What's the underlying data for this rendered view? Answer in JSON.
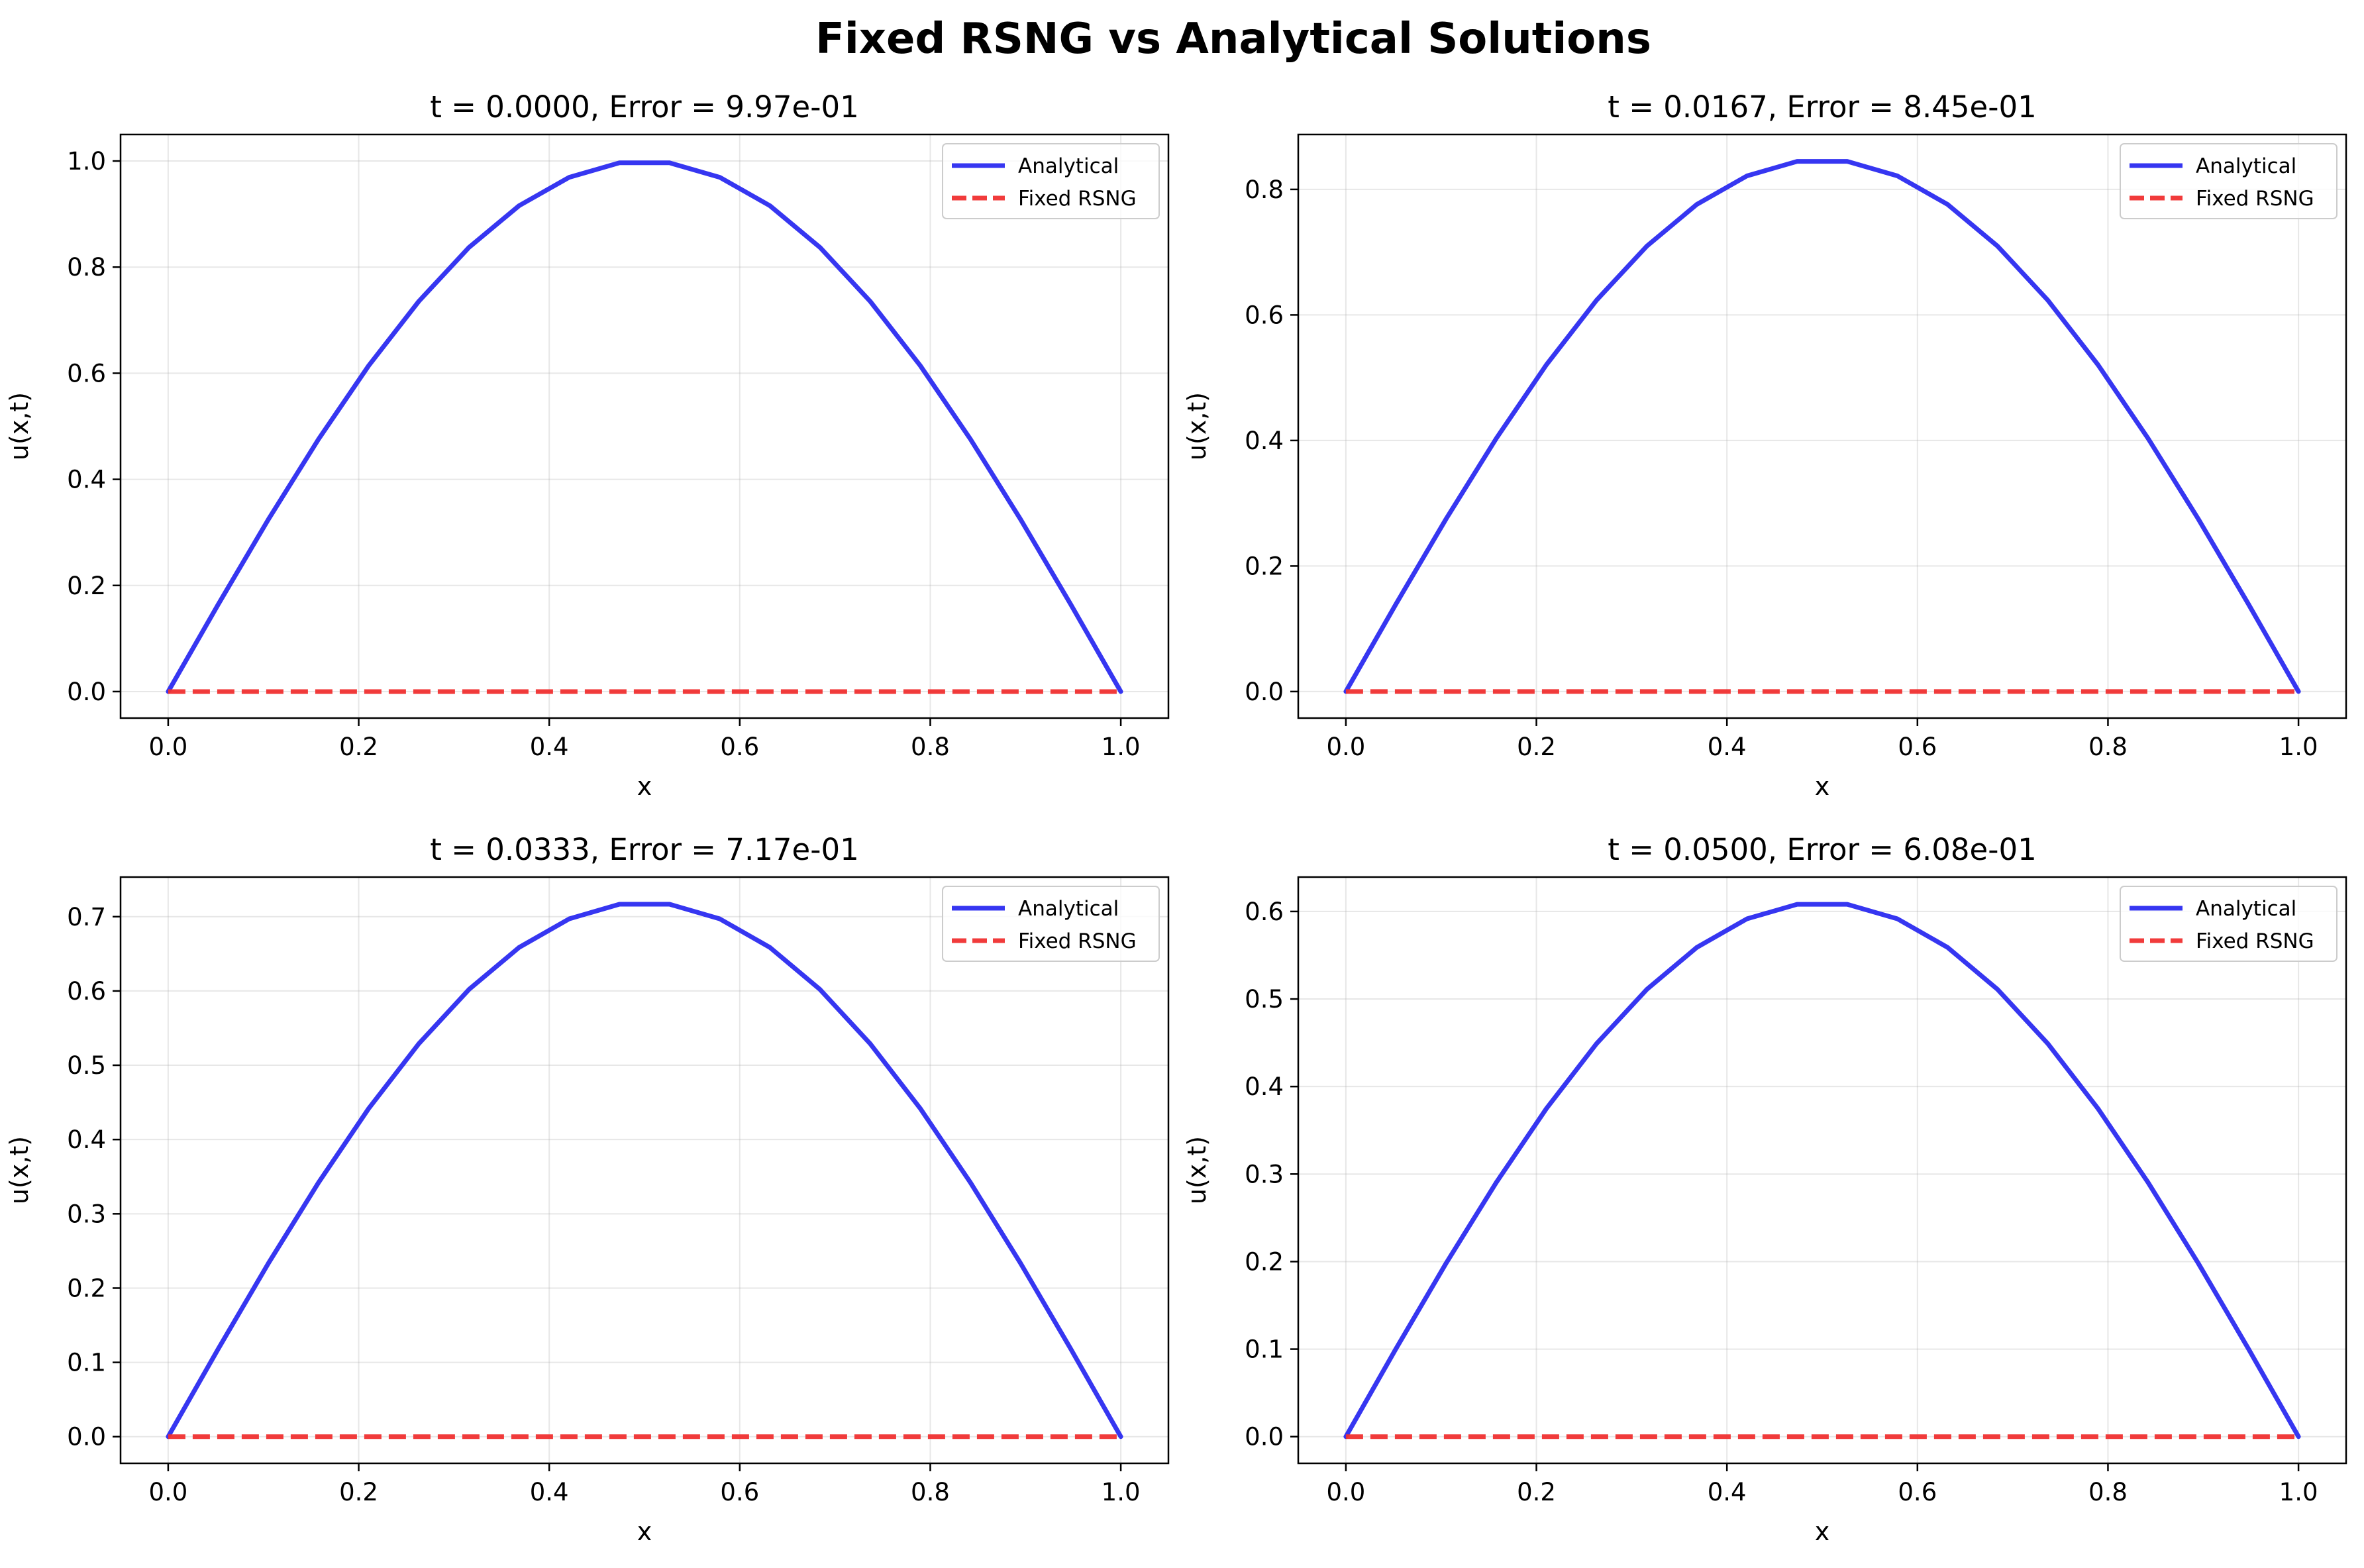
{
  "figure": {
    "title": "Fixed RSNG vs Analytical Solutions"
  },
  "colors": {
    "analytical": "#2b2bf0",
    "fixed_rsng": "#f03030"
  },
  "chart_data": [
    {
      "type": "line",
      "title": "t = 0.0000, Error = 9.97e-01",
      "xlabel": "x",
      "ylabel": "u(x,t)",
      "xlim": [
        -0.05,
        1.05
      ],
      "ylim": [
        -0.05,
        1.05
      ],
      "xticks": [
        0.0,
        0.2,
        0.4,
        0.6,
        0.8,
        1.0
      ],
      "xtick_labels": [
        "0.0",
        "0.2",
        "0.4",
        "0.6",
        "0.8",
        "1.0"
      ],
      "yticks": [
        0.0,
        0.2,
        0.4,
        0.6,
        0.8,
        1.0
      ],
      "ytick_labels": [
        "0.0",
        "0.2",
        "0.4",
        "0.6",
        "0.8",
        "1.0"
      ],
      "grid": true,
      "legend": "top-right",
      "x": [
        0,
        0.0526,
        0.1053,
        0.1579,
        0.2105,
        0.2632,
        0.3158,
        0.3684,
        0.4211,
        0.4737,
        0.5263,
        0.5789,
        0.6316,
        0.6842,
        0.7368,
        0.7895,
        0.8421,
        0.8947,
        0.9474,
        1.0
      ],
      "series": [
        {
          "name": "Analytical",
          "style": "solid",
          "values": [
            0,
            0.1646,
            0.3247,
            0.4759,
            0.6142,
            0.7357,
            0.8372,
            0.9158,
            0.9694,
            0.9966,
            0.9966,
            0.9694,
            0.9158,
            0.8372,
            0.7357,
            0.6142,
            0.4759,
            0.3247,
            0.1646,
            0
          ]
        },
        {
          "name": "Fixed RSNG",
          "style": "dashed",
          "values": [
            0,
            0,
            0,
            0,
            0,
            0,
            0,
            0,
            0,
            0,
            0,
            0,
            0,
            0,
            0,
            0,
            0,
            0,
            0,
            0
          ]
        }
      ]
    },
    {
      "type": "line",
      "title": "t = 0.0167, Error = 8.45e-01",
      "xlabel": "x",
      "ylabel": "u(x,t)",
      "xlim": [
        -0.05,
        1.05
      ],
      "ylim": [
        -0.0423,
        0.8875
      ],
      "xticks": [
        0.0,
        0.2,
        0.4,
        0.6,
        0.8,
        1.0
      ],
      "xtick_labels": [
        "0.0",
        "0.2",
        "0.4",
        "0.6",
        "0.8",
        "1.0"
      ],
      "yticks": [
        0.0,
        0.2,
        0.4,
        0.6,
        0.8
      ],
      "ytick_labels": [
        "0.0",
        "0.2",
        "0.4",
        "0.6",
        "0.8"
      ],
      "grid": true,
      "legend": "top-right",
      "x": [
        0,
        0.0526,
        0.1053,
        0.1579,
        0.2105,
        0.2632,
        0.3158,
        0.3684,
        0.4211,
        0.4737,
        0.5263,
        0.5789,
        0.6316,
        0.6842,
        0.7368,
        0.7895,
        0.8421,
        0.8947,
        0.9474,
        1.0
      ],
      "series": [
        {
          "name": "Analytical",
          "style": "solid",
          "values": [
            0,
            0.1395,
            0.2752,
            0.4033,
            0.5205,
            0.6235,
            0.7095,
            0.7761,
            0.8215,
            0.8446,
            0.8446,
            0.8215,
            0.7761,
            0.7095,
            0.6235,
            0.5205,
            0.4033,
            0.2752,
            0.1395,
            0
          ]
        },
        {
          "name": "Fixed RSNG",
          "style": "dashed",
          "values": [
            0,
            0,
            0,
            0,
            0,
            0,
            0,
            0,
            0,
            0,
            0,
            0,
            0,
            0,
            0,
            0,
            0,
            0,
            0,
            0
          ]
        }
      ]
    },
    {
      "type": "line",
      "title": "t = 0.0333, Error = 7.17e-01",
      "xlabel": "x",
      "ylabel": "u(x,t)",
      "xlim": [
        -0.05,
        1.05
      ],
      "ylim": [
        -0.0359,
        0.7533
      ],
      "xticks": [
        0.0,
        0.2,
        0.4,
        0.6,
        0.8,
        1.0
      ],
      "xtick_labels": [
        "0.0",
        "0.2",
        "0.4",
        "0.6",
        "0.8",
        "1.0"
      ],
      "yticks": [
        0.0,
        0.1,
        0.2,
        0.3,
        0.4,
        0.5,
        0.6,
        0.7
      ],
      "ytick_labels": [
        "0.0",
        "0.1",
        "0.2",
        "0.3",
        "0.4",
        "0.5",
        "0.6",
        "0.7"
      ],
      "grid": true,
      "legend": "top-right",
      "x": [
        0,
        0.0526,
        0.1053,
        0.1579,
        0.2105,
        0.2632,
        0.3158,
        0.3684,
        0.4211,
        0.4737,
        0.5263,
        0.5789,
        0.6316,
        0.6842,
        0.7368,
        0.7895,
        0.8421,
        0.8947,
        0.9474,
        1.0
      ],
      "series": [
        {
          "name": "Analytical",
          "style": "solid",
          "values": [
            0,
            0.1184,
            0.2335,
            0.3422,
            0.4417,
            0.5291,
            0.6021,
            0.6586,
            0.6971,
            0.7167,
            0.7167,
            0.6971,
            0.6586,
            0.6021,
            0.5291,
            0.4417,
            0.3422,
            0.2335,
            0.1184,
            0
          ]
        },
        {
          "name": "Fixed RSNG",
          "style": "dashed",
          "values": [
            0,
            0,
            0,
            0,
            0,
            0,
            0,
            0,
            0,
            0,
            0,
            0,
            0,
            0,
            0,
            0,
            0,
            0,
            0,
            0
          ]
        }
      ]
    },
    {
      "type": "line",
      "title": "t = 0.0500, Error = 6.08e-01",
      "xlabel": "x",
      "ylabel": "u(x,t)",
      "xlim": [
        -0.05,
        1.05
      ],
      "ylim": [
        -0.0305,
        0.6393
      ],
      "xticks": [
        0.0,
        0.2,
        0.4,
        0.6,
        0.8,
        1.0
      ],
      "xtick_labels": [
        "0.0",
        "0.2",
        "0.4",
        "0.6",
        "0.8",
        "1.0"
      ],
      "yticks": [
        0.0,
        0.1,
        0.2,
        0.3,
        0.4,
        0.5,
        0.6
      ],
      "ytick_labels": [
        "0.0",
        "0.1",
        "0.2",
        "0.3",
        "0.4",
        "0.5",
        "0.6"
      ],
      "grid": true,
      "legend": "top-right",
      "x": [
        0,
        0.0526,
        0.1053,
        0.1579,
        0.2105,
        0.2632,
        0.3158,
        0.3684,
        0.4211,
        0.4737,
        0.5263,
        0.5789,
        0.6316,
        0.6842,
        0.7368,
        0.7895,
        0.8421,
        0.8947,
        0.9474,
        1.0
      ],
      "series": [
        {
          "name": "Analytical",
          "style": "solid",
          "values": [
            0,
            0.1005,
            0.1982,
            0.2904,
            0.3748,
            0.449,
            0.5109,
            0.5589,
            0.5916,
            0.6082,
            0.6082,
            0.5916,
            0.5589,
            0.5109,
            0.449,
            0.3748,
            0.2904,
            0.1982,
            0.1005,
            0
          ]
        },
        {
          "name": "Fixed RSNG",
          "style": "dashed",
          "values": [
            0,
            0,
            0,
            0,
            0,
            0,
            0,
            0,
            0,
            0,
            0,
            0,
            0,
            0,
            0,
            0,
            0,
            0,
            0,
            0
          ]
        }
      ]
    }
  ]
}
